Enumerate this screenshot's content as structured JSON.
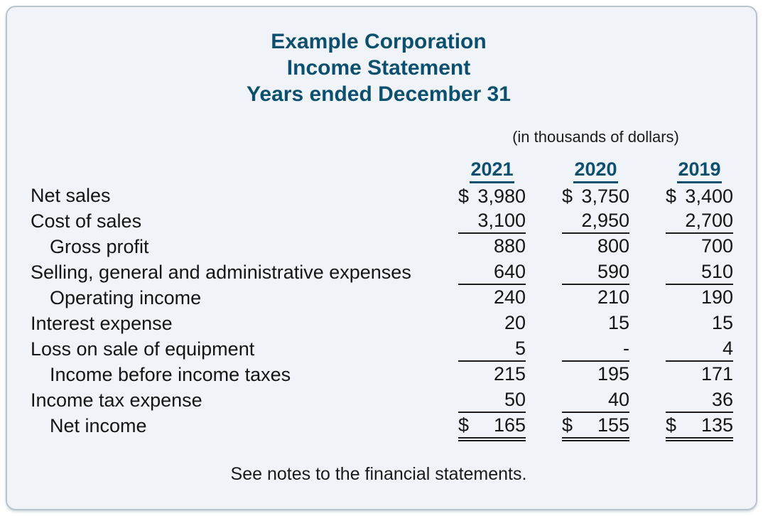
{
  "title": {
    "line1": "Example Corporation",
    "line2": "Income Statement",
    "line3": "Years ended December 31"
  },
  "units_note": "(in thousands of dollars)",
  "currency_symbol": "$",
  "table": {
    "year_headers": [
      "2021",
      "2020",
      "2019"
    ],
    "rows": [
      {
        "label": "Net sales",
        "values": [
          "3,980",
          "3,750",
          "3,400"
        ]
      },
      {
        "label": "Cost of sales",
        "values": [
          "3,100",
          "2,950",
          "2,700"
        ]
      },
      {
        "label": "Gross profit",
        "values": [
          "880",
          "800",
          "700"
        ]
      },
      {
        "label": "Selling, general and administrative expenses",
        "values": [
          "640",
          "590",
          "510"
        ]
      },
      {
        "label": "Operating income",
        "values": [
          "240",
          "210",
          "190"
        ]
      },
      {
        "label": "Interest expense",
        "values": [
          "20",
          "15",
          "15"
        ]
      },
      {
        "label": "Loss on sale of equipment",
        "values": [
          "5",
          "-",
          "4"
        ]
      },
      {
        "label": "Income before income taxes",
        "values": [
          "215",
          "195",
          "171"
        ]
      },
      {
        "label": "Income tax expense",
        "values": [
          "50",
          "40",
          "36"
        ]
      },
      {
        "label": "Net income",
        "values": [
          "165",
          "155",
          "135"
        ]
      }
    ]
  },
  "footer": "See notes to the financial statements.",
  "colors": {
    "accent": "#0d4f6e",
    "card_background": "#f0f4f9",
    "card_border": "#b9c4cf",
    "rule": "#1c1c1c",
    "text": "#1a1a1a"
  }
}
